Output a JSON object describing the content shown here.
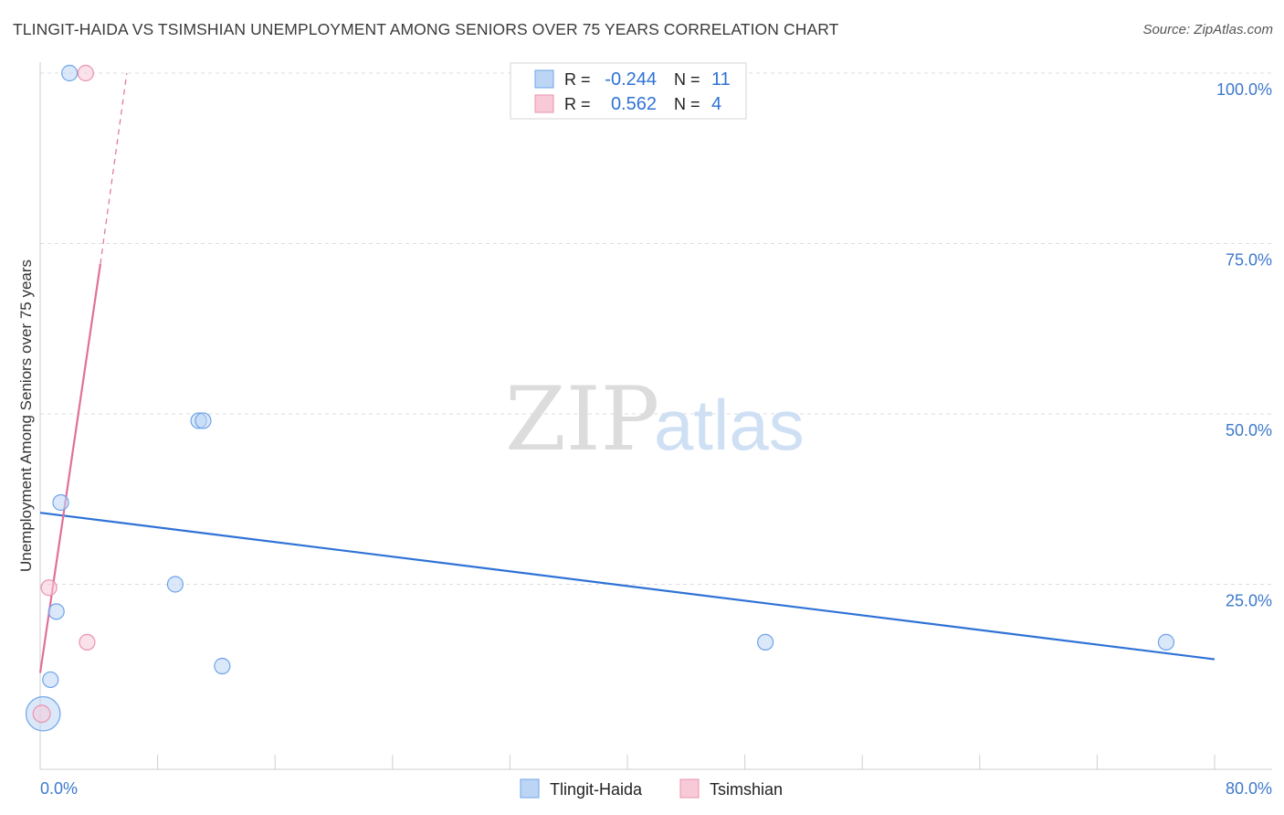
{
  "chart_data": {
    "type": "scatter",
    "title": "TLINGIT-HAIDA VS TSIMSHIAN UNEMPLOYMENT AMONG SENIORS OVER 75 YEARS CORRELATION CHART",
    "source": "Source: ZipAtlas.com",
    "ylabel": "Unemployment Among Seniors over 75 years",
    "xlabel": "",
    "xlim": [
      0,
      80
    ],
    "ylim": [
      0,
      100
    ],
    "x_ticks": [
      {
        "value": 0,
        "label": "0.0%"
      },
      {
        "value": 80,
        "label": "80.0%"
      }
    ],
    "y_ticks": [
      {
        "value": 25,
        "label": "25.0%"
      },
      {
        "value": 50,
        "label": "50.0%"
      },
      {
        "value": 75,
        "label": "75.0%"
      },
      {
        "value": 100,
        "label": "100.0%"
      }
    ],
    "watermark": {
      "zip": "ZIP",
      "atlas": "atlas"
    },
    "legend_stats": [
      {
        "r_label": "R =",
        "r_value": "-0.244",
        "n_label": "N =",
        "n_value": "11",
        "series": "Tlingit-Haida"
      },
      {
        "r_label": "R =",
        "r_value": "0.562",
        "n_label": "N =",
        "n_value": "4",
        "series": "Tsimshian"
      }
    ],
    "series": [
      {
        "name": "Tlingit-Haida",
        "color": "#6fa3e8",
        "fill": "#bcd5f5",
        "line_color": "#2f72d6",
        "points": [
          {
            "x": 2.0,
            "y": 100.0,
            "size": 1
          },
          {
            "x": 10.8,
            "y": 49.0,
            "size": 1
          },
          {
            "x": 11.1,
            "y": 49.0,
            "size": 1
          },
          {
            "x": 1.4,
            "y": 37.0,
            "size": 1
          },
          {
            "x": 9.2,
            "y": 25.0,
            "size": 1
          },
          {
            "x": 1.1,
            "y": 21.0,
            "size": 1
          },
          {
            "x": 49.4,
            "y": 16.5,
            "size": 1
          },
          {
            "x": 76.7,
            "y": 16.5,
            "size": 1
          },
          {
            "x": 12.4,
            "y": 13.0,
            "size": 1
          },
          {
            "x": 0.7,
            "y": 11.0,
            "size": 1
          },
          {
            "x": 0.2,
            "y": 6.0,
            "size": 2.2
          }
        ],
        "trend": {
          "x1": 0,
          "y1": 35.5,
          "x2": 80,
          "y2": 14.0
        }
      },
      {
        "name": "Tsimshian",
        "color": "#e993ae",
        "fill": "#f8c9d7",
        "line_color": "#e0709a",
        "points": [
          {
            "x": 3.1,
            "y": 100.0,
            "size": 1
          },
          {
            "x": 0.6,
            "y": 24.5,
            "size": 1
          },
          {
            "x": 3.2,
            "y": 16.5,
            "size": 1
          },
          {
            "x": 0.1,
            "y": 6.0,
            "size": 1.1
          }
        ],
        "trend": {
          "x1": 0,
          "y1": 12.0,
          "x2": 4.1,
          "y2": 72.0
        },
        "trend_dashed": {
          "x1": 4.1,
          "y1": 72.0,
          "x2": 5.9,
          "y2": 100.0
        }
      }
    ]
  }
}
